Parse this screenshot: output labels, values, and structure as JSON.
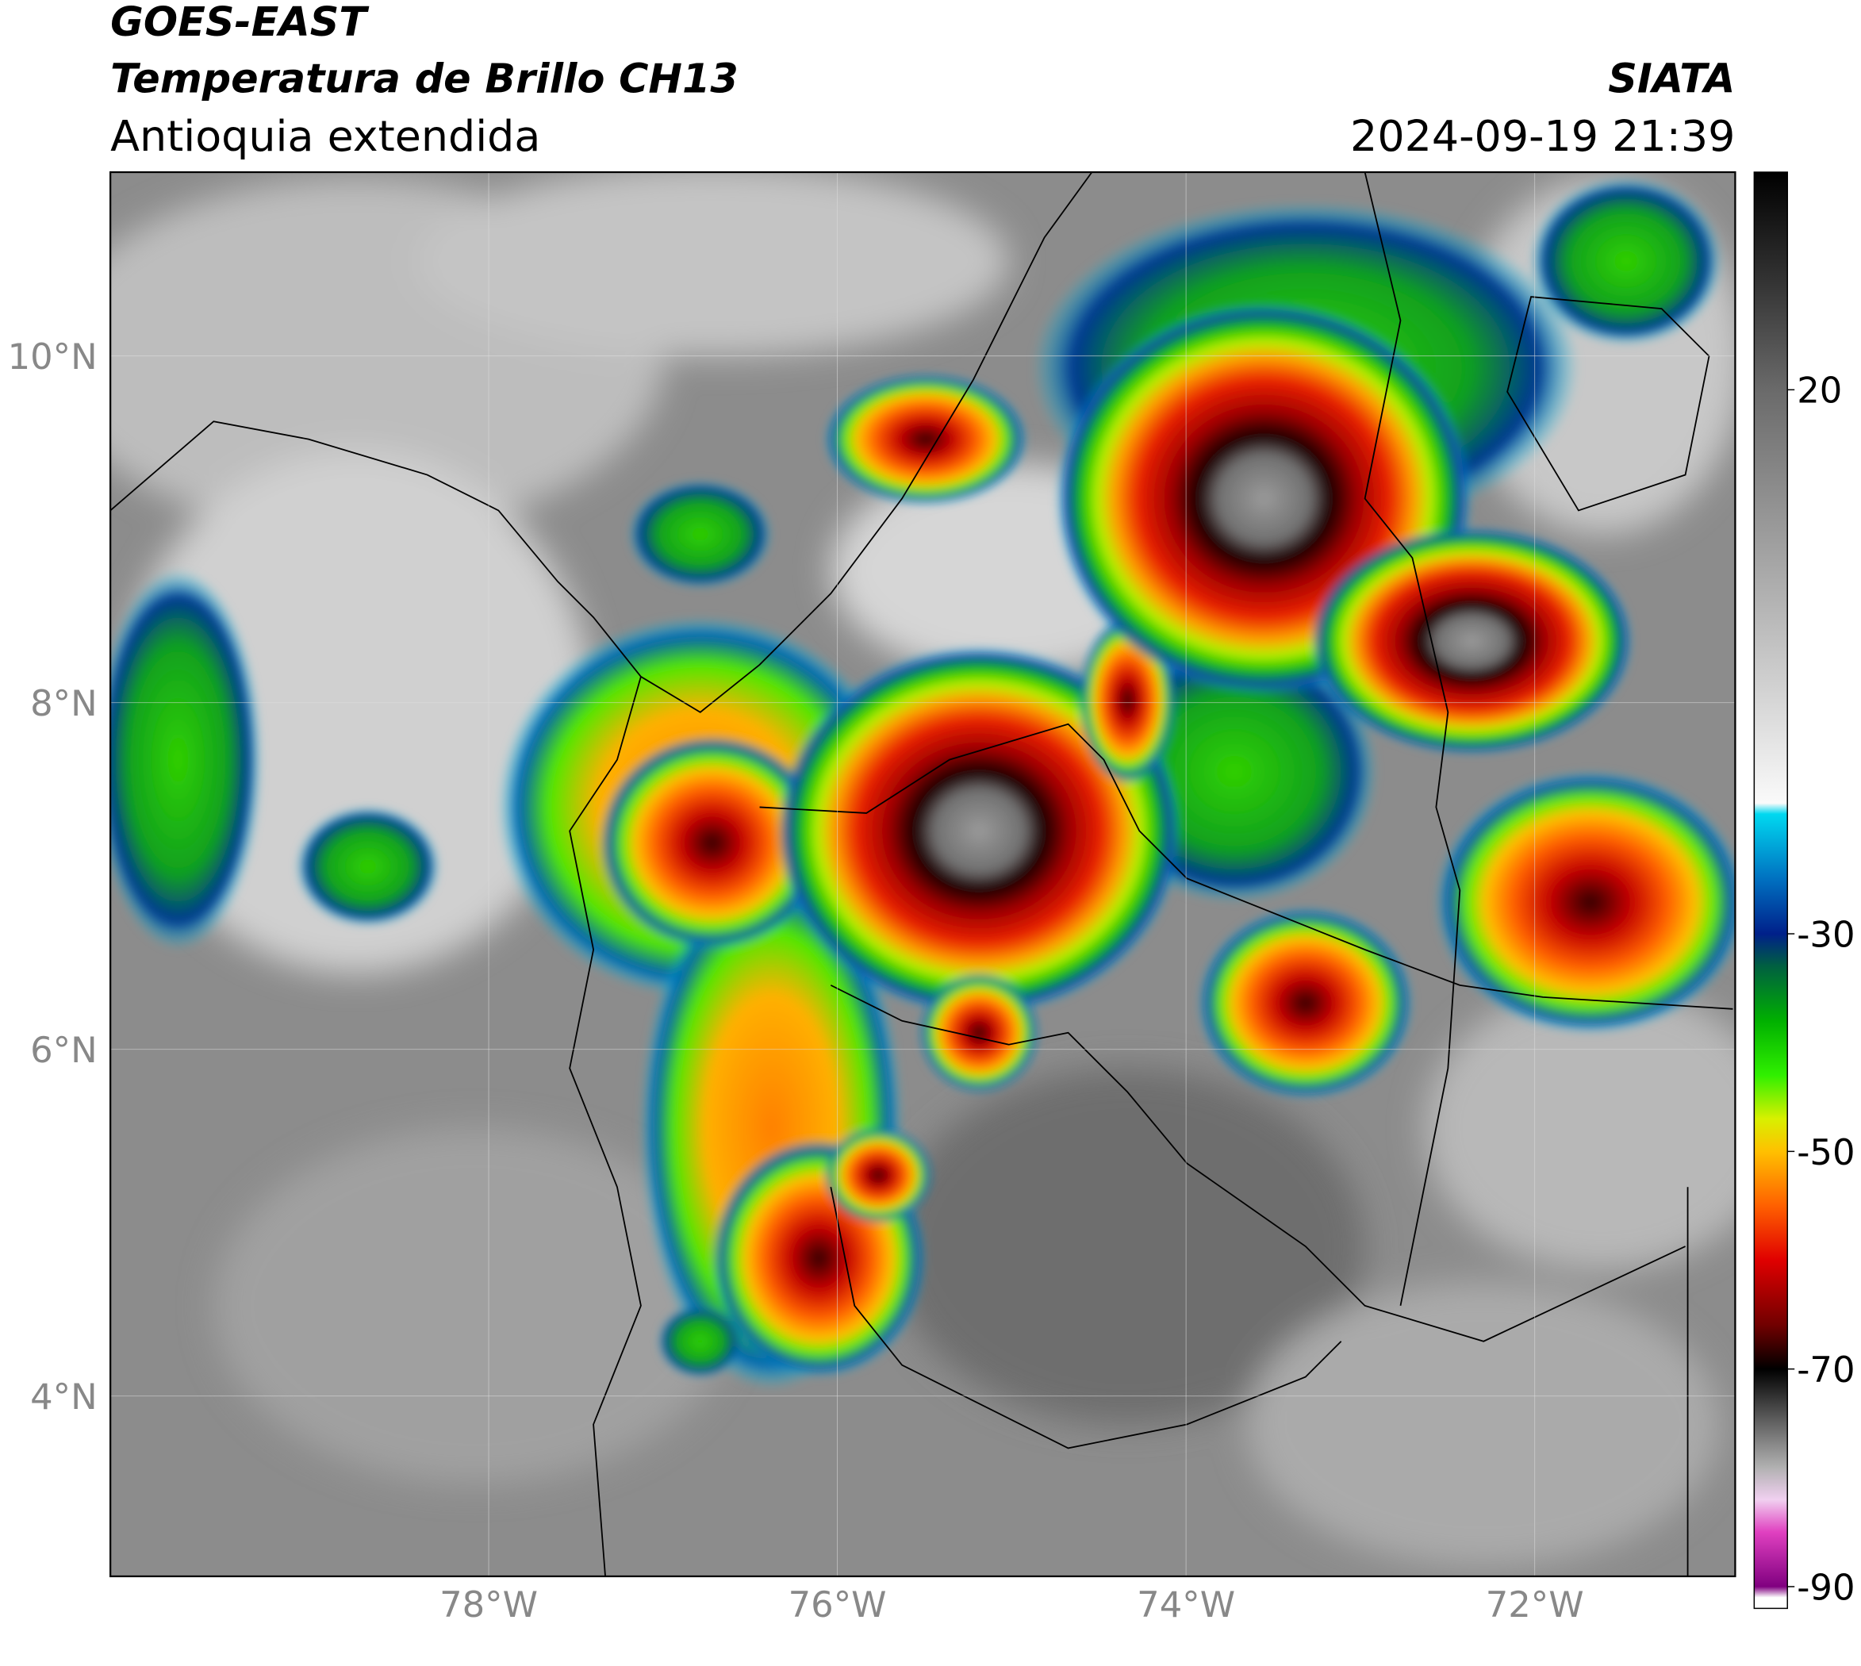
{
  "header": {
    "title": "GOES-EAST",
    "subtitle": "Temperatura de Brillo CH13",
    "region": "Antioquia extendida",
    "source": "SIATA",
    "datetime": "2024-09-19 21:39"
  },
  "map": {
    "xlim": [
      -80.17,
      -70.85
    ],
    "ylim": [
      2.96,
      11.06
    ],
    "xticks": [
      {
        "value": -78,
        "label": "78°W"
      },
      {
        "value": -76,
        "label": "76°W"
      },
      {
        "value": -74,
        "label": "74°W"
      },
      {
        "value": -72,
        "label": "72°W"
      }
    ],
    "yticks": [
      {
        "value": 10,
        "label": "10°N"
      },
      {
        "value": 8,
        "label": "8°N"
      },
      {
        "value": 6,
        "label": "6°N"
      },
      {
        "value": 4,
        "label": "4°N"
      }
    ],
    "grid": true
  },
  "colorbar": {
    "ylim": [
      -92,
      40
    ],
    "ticks": [
      20,
      -30,
      -50,
      -70,
      -90
    ],
    "stops": [
      {
        "value": 40,
        "color": "#000000"
      },
      {
        "value": 30,
        "color": "#333333"
      },
      {
        "value": 20,
        "color": "#6a6a6a"
      },
      {
        "value": 0,
        "color": "#b5b5b5"
      },
      {
        "value": -18,
        "color": "#fafafa"
      },
      {
        "value": -19,
        "color": "#00d8f0"
      },
      {
        "value": -25,
        "color": "#0070c0"
      },
      {
        "value": -30,
        "color": "#00208a"
      },
      {
        "value": -33,
        "color": "#006040"
      },
      {
        "value": -38,
        "color": "#00b000"
      },
      {
        "value": -43,
        "color": "#30f000"
      },
      {
        "value": -47,
        "color": "#d8f000"
      },
      {
        "value": -50,
        "color": "#ffc000"
      },
      {
        "value": -55,
        "color": "#ff6000"
      },
      {
        "value": -60,
        "color": "#e00000"
      },
      {
        "value": -66,
        "color": "#700000"
      },
      {
        "value": -70,
        "color": "#000000"
      },
      {
        "value": -74,
        "color": "#505050"
      },
      {
        "value": -79,
        "color": "#b0b0b0"
      },
      {
        "value": -82,
        "color": "#f0d0f0"
      },
      {
        "value": -85,
        "color": "#e040c0"
      },
      {
        "value": -90,
        "color": "#800080"
      },
      {
        "value": -91,
        "color": "#ffffff"
      }
    ]
  }
}
